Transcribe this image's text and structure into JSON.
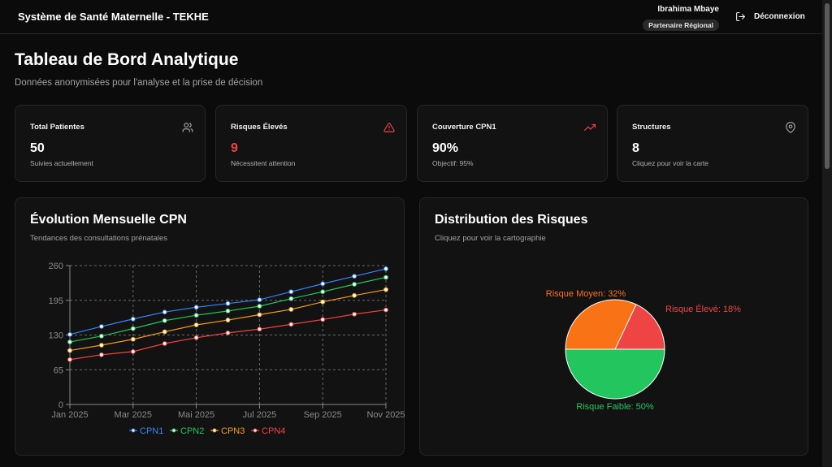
{
  "header": {
    "app_title": "Système de Santé Maternelle - TEKHE",
    "user_name": "Ibrahima Mbaye",
    "user_role": "Partenaire Régional",
    "logout_label": "Déconnexion"
  },
  "page": {
    "title": "Tableau de Bord Analytique",
    "subtitle": "Données anonymisées pour l'analyse et la prise de décision"
  },
  "stats": [
    {
      "label": "Total Patientes",
      "value": "50",
      "sub": "Suivies actuellement",
      "icon": "users-icon"
    },
    {
      "label": "Risques Élevés",
      "value": "9",
      "sub": "Nécessitent attention",
      "icon": "alert-triangle-icon",
      "color": "#ef4444"
    },
    {
      "label": "Couverture CPN1",
      "value": "90%",
      "sub": "Objectif: 95%",
      "icon": "trending-up-icon",
      "color": "#ef4444"
    },
    {
      "label": "Structures",
      "value": "8",
      "sub": "Cliquez pour voir la carte",
      "icon": "map-pin-icon"
    }
  ],
  "evolution_panel": {
    "title": "Évolution Mensuelle CPN",
    "subtitle": "Tendances des consultations prénatales"
  },
  "risk_panel": {
    "title": "Distribution des Risques",
    "subtitle": "Cliquez pour voir la cartographie"
  },
  "chart_data": [
    {
      "type": "line",
      "x": [
        "Jan 2025",
        "Feb 2025",
        "Mar 2025",
        "Apr 2025",
        "Mai 2025",
        "Jun 2025",
        "Jul 2025",
        "Aug 2025",
        "Sep 2025",
        "Oct 2025",
        "Nov 2025"
      ],
      "x_tick_labels": [
        "Jan 2025",
        "Mar 2025",
        "Mai 2025",
        "Jul 2025",
        "Sep 2025",
        "Nov 2025"
      ],
      "ylim": [
        0,
        260
      ],
      "yticks": [
        0,
        65,
        130,
        195,
        260
      ],
      "grid": true,
      "legend": "bottom",
      "series": [
        {
          "name": "CPN1",
          "color": "#3b82f6",
          "values": [
            131,
            146,
            160,
            173,
            182,
            189,
            196,
            211,
            226,
            240,
            254
          ]
        },
        {
          "name": "CPN2",
          "color": "#22c55e",
          "values": [
            117,
            128,
            142,
            157,
            167,
            175,
            184,
            198,
            211,
            225,
            238
          ]
        },
        {
          "name": "CPN3",
          "color": "#f59e0b",
          "values": [
            101,
            111,
            122,
            136,
            149,
            158,
            168,
            178,
            192,
            204,
            215
          ]
        },
        {
          "name": "CPN4",
          "color": "#ef4444",
          "values": [
            84,
            93,
            99,
            114,
            125,
            134,
            141,
            150,
            159,
            169,
            177
          ]
        }
      ]
    },
    {
      "type": "pie",
      "slices": [
        {
          "label": "Risque Élevé",
          "value": 18,
          "color": "#ef4444",
          "text": "Risque Élevé: 18%"
        },
        {
          "label": "Risque Faible",
          "value": 50,
          "color": "#22c55e",
          "text": "Risque Faible: 50%"
        },
        {
          "label": "Risque Moyen",
          "value": 32,
          "color": "#f97316",
          "text": "Risque Moyen: 32%"
        }
      ]
    }
  ]
}
